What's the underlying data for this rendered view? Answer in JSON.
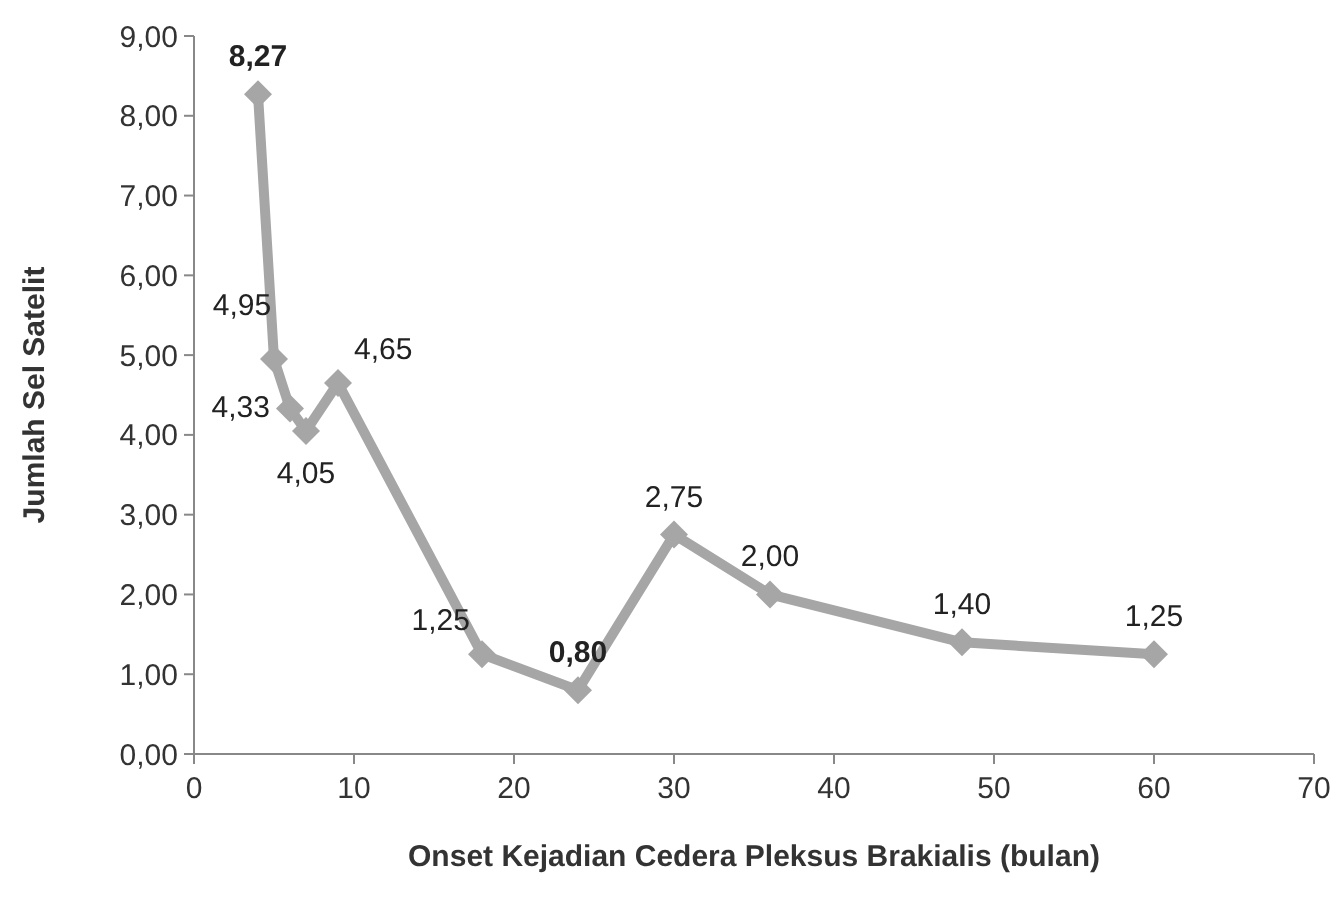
{
  "chart_data": {
    "type": "line",
    "xlabel": "Onset Kejadian Cedera Pleksus Brakialis (bulan)",
    "ylabel": "Jumlah Sel Satelit",
    "x": [
      4,
      5,
      6,
      7,
      9,
      18,
      24,
      30,
      36,
      48,
      60
    ],
    "series": [
      {
        "color": "#a6a6a6",
        "values": [
          8.27,
          4.95,
          4.33,
          4.05,
          4.65,
          1.25,
          0.8,
          2.75,
          2.0,
          1.4,
          1.25
        ],
        "value_labels": [
          "8,27",
          "4,95",
          "4,33",
          "4,05",
          "4,65",
          "1,25",
          "0,80",
          "2,75",
          "2,00",
          "1,40",
          "1,25"
        ]
      }
    ],
    "xlim": [
      0,
      70
    ],
    "xticks": [
      0,
      10,
      20,
      30,
      40,
      50,
      60,
      70
    ],
    "ylim": [
      0,
      9
    ],
    "yticks": [
      {
        "value": 0,
        "label": "0,00"
      },
      {
        "value": 1,
        "label": "1,00"
      },
      {
        "value": 2,
        "label": "2,00"
      },
      {
        "value": 3,
        "label": "3,00"
      },
      {
        "value": 4,
        "label": "4,00"
      },
      {
        "value": 5,
        "label": "5,00"
      },
      {
        "value": 6,
        "label": "6,00"
      },
      {
        "value": 7,
        "label": "7,00"
      },
      {
        "value": 8,
        "label": "8,00"
      },
      {
        "value": 9,
        "label": "9,00"
      }
    ],
    "marker": "diamond",
    "grid": false
  }
}
